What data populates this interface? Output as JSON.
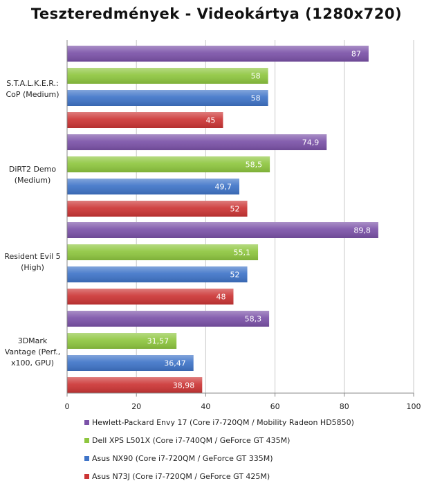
{
  "chart_data": {
    "type": "bar",
    "orientation": "horizontal",
    "title": "Teszteredmények - Videokártya (1280x720)",
    "categories": [
      [
        "S.T.A.L.K.E.R.:",
        "CoP (Medium)"
      ],
      [
        "DiRT2 Demo",
        "(Medium)"
      ],
      [
        "Resident Evil 5",
        "(High)"
      ],
      [
        "3DMark",
        "Vantage (Perf.,",
        "x100, GPU)"
      ]
    ],
    "series": [
      {
        "name": "Hewlett-Packard Envy 17 (Core i7-720QM / Mobility Radeon HD5850)",
        "color": "#7b52a8",
        "values": [
          87,
          74.9,
          89.8,
          58.3
        ],
        "labels": [
          "87",
          "74,9",
          "89,8",
          "58,3"
        ]
      },
      {
        "name": "Dell XPS L501X (Core i7-740QM / GeForce GT 435M)",
        "color": "#8ec63f",
        "values": [
          58,
          58.5,
          55.1,
          31.57
        ],
        "labels": [
          "58",
          "58,5",
          "55,1",
          "31,57"
        ]
      },
      {
        "name": "Asus NX90 (Core i7-720QM / GeForce GT 335M)",
        "color": "#3f74c8",
        "values": [
          58,
          49.7,
          52,
          36.47
        ],
        "labels": [
          "58",
          "49,7",
          "52",
          "36,47"
        ]
      },
      {
        "name": "Asus N73J (Core i7-720QM / GeForce GT 425M)",
        "color": "#cc3535",
        "values": [
          45,
          52,
          48,
          38.98
        ],
        "labels": [
          "45",
          "52",
          "48",
          "38,98"
        ]
      }
    ],
    "xlim": [
      0,
      100
    ],
    "xticks": [
      0,
      20,
      40,
      60,
      80,
      100
    ],
    "grid": true,
    "legend_position": "bottom"
  }
}
